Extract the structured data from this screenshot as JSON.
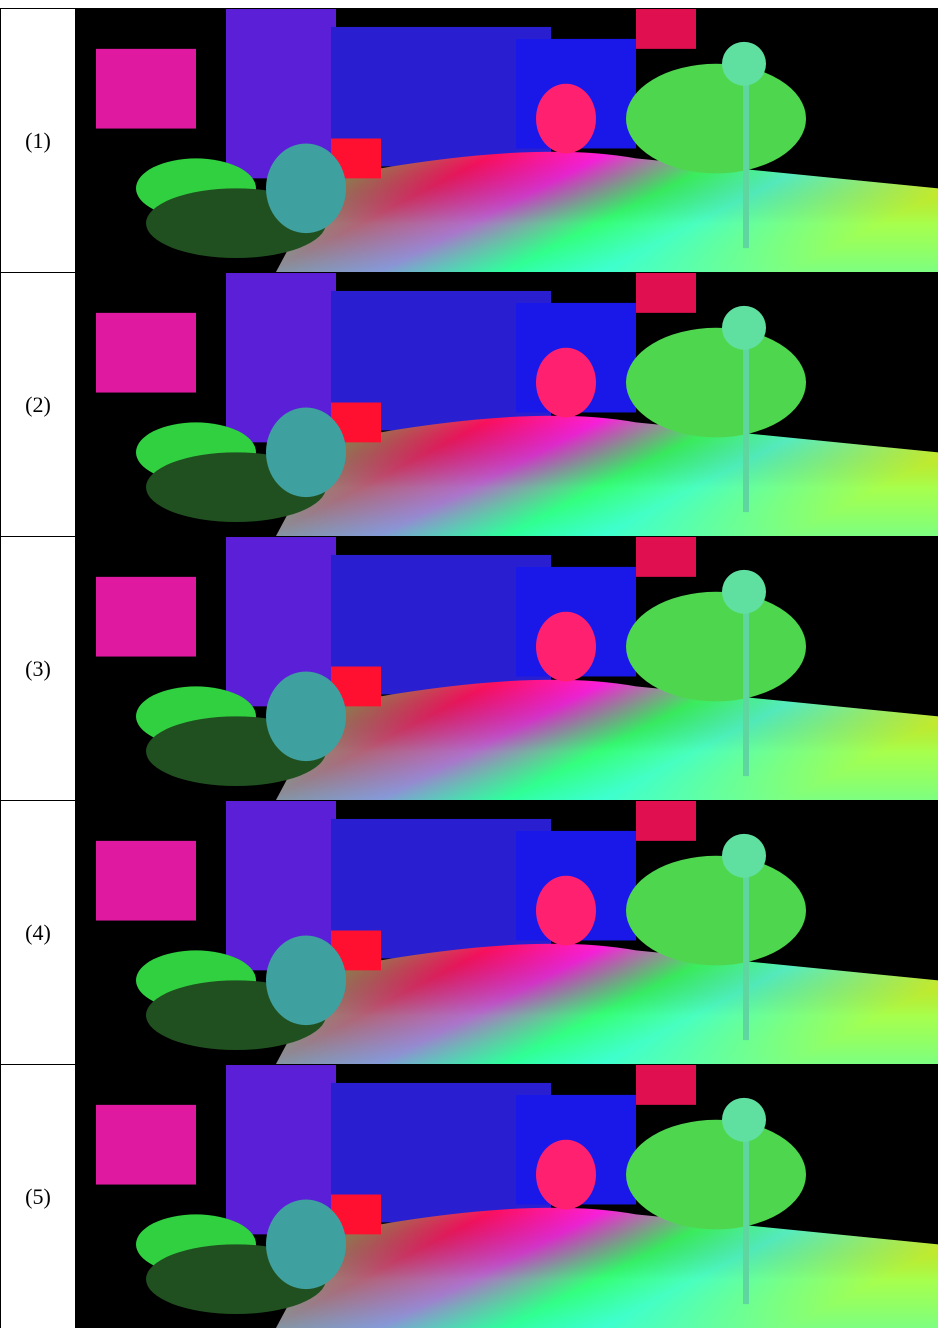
{
  "rows": [
    {
      "label": "(1)"
    },
    {
      "label": "(2)"
    },
    {
      "label": "(3)"
    },
    {
      "label": "(4)"
    },
    {
      "label": "(5)"
    }
  ]
}
